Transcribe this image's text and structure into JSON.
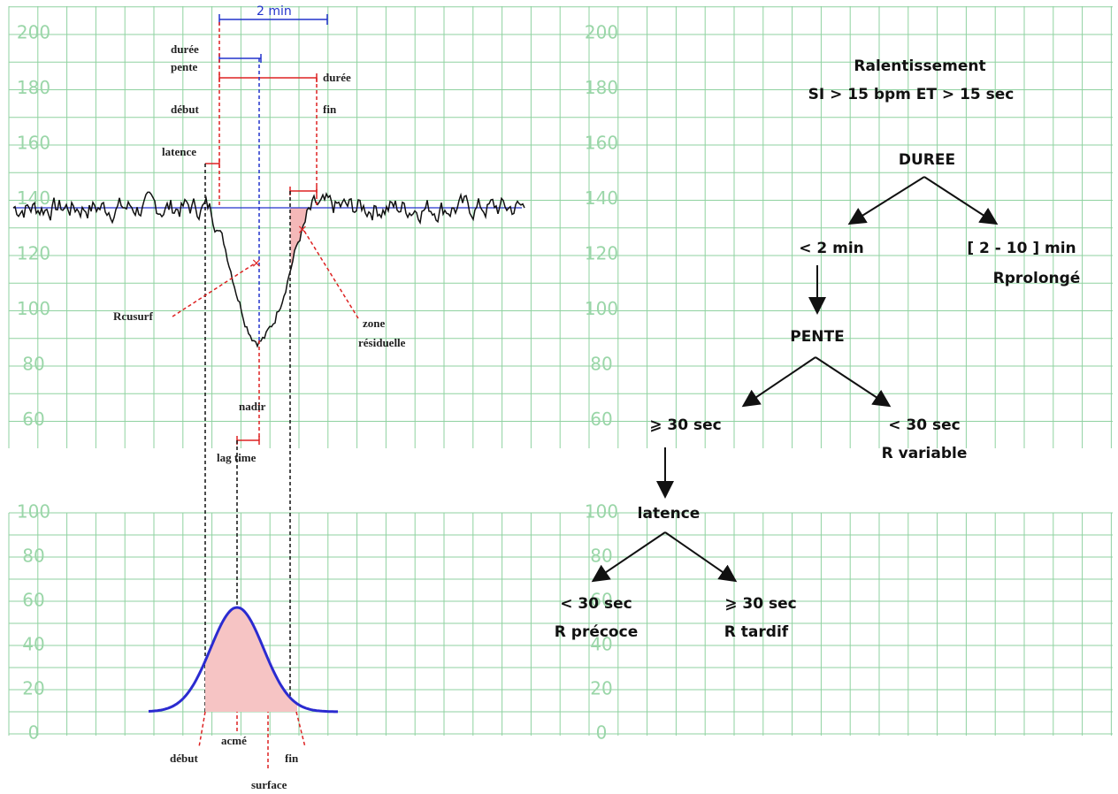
{
  "fhr_axis": {
    "labels": [
      "200",
      "180",
      "160",
      "140",
      "120",
      "100",
      "80",
      "60"
    ]
  },
  "uc_axis": {
    "labels": [
      "100",
      "80",
      "60",
      "40",
      "20",
      "0"
    ]
  },
  "annotations": {
    "two_min": "2 min",
    "duree_pente_1": "durée",
    "duree_pente_2": "pente",
    "duree": "durée",
    "debut": "début",
    "fin": "fin",
    "latence": "latence",
    "rcusurf": "Rcusurf",
    "zone_1": "zone",
    "zone_2": "résiduelle",
    "nadir": "nadir",
    "lag_time": "lag time"
  },
  "contraction_labels": {
    "debut": "début",
    "acme": "acmé",
    "fin": "fin",
    "surface": "surface"
  },
  "tree": {
    "title_1": "Ralentissement",
    "title_2": "SI > 15 bpm ET > 15 sec",
    "duree": "DUREE",
    "short": "< 2 min",
    "long_1": "[ 2 - 10 ] min",
    "long_2": "Rprolongé",
    "pente": "PENTE",
    "pente_long": "⩾ 30 sec",
    "pente_short_1": "< 30 sec",
    "pente_short_2": "R variable",
    "latence": "latence",
    "lat_short_1": "< 30 sec",
    "lat_short_2": "R précoce",
    "lat_long_1": "⩾ 30 sec",
    "lat_long_2": "R tardif"
  }
}
